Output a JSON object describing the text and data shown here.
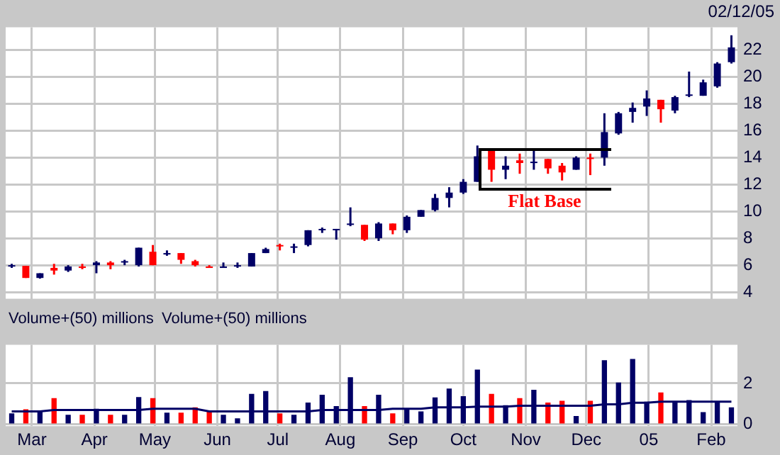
{
  "chart_data": [
    {
      "type": "candlestick",
      "annotations": [
        "02/12/05",
        "Flat Base"
      ],
      "x": [
        "2004-02-20",
        "2004-02-27",
        "2004-03-05",
        "2004-03-12",
        "2004-03-19",
        "2004-03-26",
        "2004-04-02",
        "2004-04-09",
        "2004-04-16",
        "2004-04-23",
        "2004-04-30",
        "2004-05-07",
        "2004-05-14",
        "2004-05-21",
        "2004-05-28",
        "2004-06-04",
        "2004-06-11",
        "2004-06-18",
        "2004-06-25",
        "2004-07-02",
        "2004-07-09",
        "2004-07-16",
        "2004-07-23",
        "2004-07-30",
        "2004-08-06",
        "2004-08-13",
        "2004-08-20",
        "2004-08-27",
        "2004-09-03",
        "2004-09-10",
        "2004-09-17",
        "2004-09-24",
        "2004-10-01",
        "2004-10-08",
        "2004-10-15",
        "2004-10-22",
        "2004-10-29",
        "2004-11-05",
        "2004-11-12",
        "2004-11-19",
        "2004-11-26",
        "2004-12-03",
        "2004-12-10",
        "2004-12-17",
        "2004-12-24",
        "2004-12-31",
        "2005-01-07",
        "2005-01-14",
        "2005-01-21",
        "2005-01-28",
        "2005-02-04",
        "2005-02-11"
      ],
      "ohlc": [
        [
          5.9,
          6.1,
          5.8,
          6.0
        ],
        [
          5.95,
          5.95,
          5.05,
          5.05
        ],
        [
          5.05,
          5.4,
          5.0,
          5.4
        ],
        [
          5.8,
          6.1,
          5.3,
          5.6
        ],
        [
          5.6,
          6.0,
          5.5,
          5.9
        ],
        [
          5.9,
          6.1,
          5.7,
          5.9
        ],
        [
          6.0,
          6.3,
          5.4,
          6.2
        ],
        [
          6.2,
          6.3,
          5.7,
          6.0
        ],
        [
          6.2,
          6.4,
          6.0,
          6.3
        ],
        [
          6.0,
          7.3,
          5.9,
          7.3
        ],
        [
          7.0,
          7.5,
          6.0,
          6.0
        ],
        [
          6.9,
          7.1,
          6.7,
          6.9
        ],
        [
          6.9,
          6.9,
          6.1,
          6.4
        ],
        [
          6.3,
          6.4,
          5.9,
          6.0
        ],
        [
          5.9,
          6.0,
          5.8,
          5.9
        ],
        [
          5.9,
          6.2,
          5.8,
          5.9
        ],
        [
          6.0,
          6.2,
          5.8,
          6.0
        ],
        [
          5.9,
          6.9,
          5.9,
          6.9
        ],
        [
          6.9,
          7.3,
          6.9,
          7.2
        ],
        [
          7.5,
          7.6,
          7.1,
          7.4
        ],
        [
          7.3,
          7.6,
          6.9,
          7.4
        ],
        [
          7.5,
          8.6,
          7.4,
          8.6
        ],
        [
          8.6,
          8.8,
          8.4,
          8.7
        ],
        [
          8.6,
          8.7,
          7.9,
          8.7
        ],
        [
          9.1,
          10.3,
          8.9,
          9.0
        ],
        [
          9.0,
          9.0,
          7.8,
          7.9
        ],
        [
          8.0,
          9.2,
          7.8,
          9.1
        ],
        [
          9.1,
          9.1,
          8.3,
          8.6
        ],
        [
          8.6,
          9.7,
          8.4,
          9.6
        ],
        [
          9.6,
          10.1,
          9.6,
          10.1
        ],
        [
          10.1,
          11.3,
          10.0,
          11.0
        ],
        [
          11.0,
          11.8,
          10.3,
          11.4
        ],
        [
          11.4,
          12.4,
          11.3,
          12.2
        ],
        [
          12.2,
          14.9,
          12.2,
          14.1
        ],
        [
          14.5,
          14.6,
          12.2,
          13.1
        ],
        [
          13.1,
          14.1,
          12.4,
          13.4
        ],
        [
          13.8,
          14.3,
          12.8,
          13.6
        ],
        [
          13.6,
          14.5,
          13.1,
          13.7
        ],
        [
          13.9,
          13.9,
          12.8,
          13.2
        ],
        [
          13.4,
          13.6,
          12.3,
          12.9
        ],
        [
          13.1,
          14.1,
          13.1,
          14.0
        ],
        [
          13.9,
          14.3,
          12.7,
          14.0
        ],
        [
          14.0,
          17.3,
          13.4,
          15.9
        ],
        [
          15.8,
          17.4,
          15.7,
          17.3
        ],
        [
          17.4,
          18.1,
          16.6,
          17.7
        ],
        [
          17.8,
          19.0,
          17.1,
          18.4
        ],
        [
          18.3,
          18.3,
          16.6,
          17.6
        ],
        [
          17.5,
          18.6,
          17.3,
          18.5
        ],
        [
          18.7,
          20.4,
          18.5,
          18.6
        ],
        [
          18.6,
          19.8,
          18.6,
          19.6
        ],
        [
          19.3,
          21.1,
          19.2,
          21.0
        ],
        [
          21.1,
          23.1,
          21.0,
          22.2
        ]
      ],
      "colors": [
        "#000066",
        "#ff0000",
        "#000066",
        "#ff0000",
        "#000066",
        "#ff0000",
        "#000066",
        "#ff0000",
        "#000066",
        "#000066",
        "#ff0000",
        "#000066",
        "#ff0000",
        "#ff0000",
        "#ff0000",
        "#000066",
        "#000066",
        "#000066",
        "#000066",
        "#ff0000",
        "#000066",
        "#000066",
        "#000066",
        "#000066",
        "#000066",
        "#ff0000",
        "#000066",
        "#ff0000",
        "#000066",
        "#000066",
        "#000066",
        "#000066",
        "#000066",
        "#000066",
        "#ff0000",
        "#000066",
        "#ff0000",
        "#000066",
        "#ff0000",
        "#ff0000",
        "#000066",
        "#ff0000",
        "#000066",
        "#000066",
        "#000066",
        "#000066",
        "#ff0000",
        "#000066",
        "#000066",
        "#000066",
        "#000066",
        "#000066"
      ],
      "xlim": [
        "2004-02-17",
        "2005-02-14"
      ],
      "xticks": [
        {
          "value": "2004-03-01",
          "label": null
        },
        {
          "value": "2004-04-01",
          "label": null
        },
        {
          "value": "2004-05-01",
          "label": null
        },
        {
          "value": "2004-06-01",
          "label": null
        },
        {
          "value": "2004-07-01",
          "label": null
        },
        {
          "value": "2004-08-01",
          "label": null
        },
        {
          "value": "2004-09-01",
          "label": null
        },
        {
          "value": "2004-10-01",
          "label": null
        },
        {
          "value": "2004-11-01",
          "label": null
        },
        {
          "value": "2004-12-01",
          "label": null
        },
        {
          "value": "2005-01-01",
          "label": null
        },
        {
          "value": "2005-02-01",
          "label": null
        }
      ],
      "ylim": [
        3.5,
        23.7
      ],
      "yticks": [
        4,
        6,
        8,
        10,
        12,
        14,
        16,
        18,
        20,
        22
      ],
      "grid": true,
      "tick_labels": "y"
    },
    {
      "type": "bar",
      "annotations": [
        "Volume+(50) millions",
        "Volume+(50) millions"
      ],
      "x": [
        "2004-02-20",
        "2004-02-27",
        "2004-03-05",
        "2004-03-12",
        "2004-03-19",
        "2004-03-26",
        "2004-04-02",
        "2004-04-09",
        "2004-04-16",
        "2004-04-23",
        "2004-04-30",
        "2004-05-07",
        "2004-05-14",
        "2004-05-21",
        "2004-05-28",
        "2004-06-04",
        "2004-06-11",
        "2004-06-18",
        "2004-06-25",
        "2004-07-02",
        "2004-07-09",
        "2004-07-16",
        "2004-07-23",
        "2004-07-30",
        "2004-08-06",
        "2004-08-13",
        "2004-08-20",
        "2004-08-27",
        "2004-09-03",
        "2004-09-10",
        "2004-09-17",
        "2004-09-24",
        "2004-10-01",
        "2004-10-08",
        "2004-10-15",
        "2004-10-22",
        "2004-10-29",
        "2004-11-05",
        "2004-11-12",
        "2004-11-19",
        "2004-11-26",
        "2004-12-03",
        "2004-12-10",
        "2004-12-17",
        "2004-12-24",
        "2004-12-31",
        "2005-01-07",
        "2005-01-14",
        "2005-01-21",
        "2005-01-28",
        "2005-02-04",
        "2005-02-11"
      ],
      "series": [
        {
          "type": "bar",
          "colors": [
            "#000066",
            "#ff0000",
            "#000066",
            "#ff0000",
            "#000066",
            "#ff0000",
            "#000066",
            "#ff0000",
            "#000066",
            "#000066",
            "#ff0000",
            "#000066",
            "#ff0000",
            "#ff0000",
            "#ff0000",
            "#000066",
            "#000066",
            "#000066",
            "#000066",
            "#ff0000",
            "#000066",
            "#000066",
            "#000066",
            "#000066",
            "#000066",
            "#ff0000",
            "#000066",
            "#ff0000",
            "#000066",
            "#000066",
            "#000066",
            "#000066",
            "#000066",
            "#000066",
            "#ff0000",
            "#000066",
            "#ff0000",
            "#000066",
            "#ff0000",
            "#ff0000",
            "#000066",
            "#ff0000",
            "#000066",
            "#000066",
            "#000066",
            "#000066",
            "#ff0000",
            "#000066",
            "#000066",
            "#000066",
            "#000066",
            "#000066"
          ],
          "values": [
            0.5,
            0.7,
            0.6,
            1.25,
            0.43,
            0.43,
            0.73,
            0.43,
            0.43,
            1.3,
            1.25,
            0.54,
            0.54,
            0.8,
            0.58,
            0.43,
            0.26,
            1.46,
            1.6,
            0.5,
            0.43,
            1.03,
            1.42,
            0.86,
            2.28,
            0.86,
            1.42,
            0.5,
            0.73,
            0.6,
            1.29,
            1.72,
            1.35,
            2.65,
            1.46,
            0.9,
            1.25,
            1.66,
            1.03,
            1.12,
            0.37,
            1.12,
            3.12,
            2.02,
            3.18,
            1.08,
            1.53,
            1.08,
            1.16,
            0.56,
            1.08,
            0.8
          ]
        },
        {
          "type": "line",
          "color": "#000066",
          "values": [
            0.62,
            0.62,
            0.62,
            0.69,
            0.69,
            0.69,
            0.69,
            0.69,
            0.69,
            0.69,
            0.75,
            0.75,
            0.75,
            0.75,
            0.62,
            0.62,
            0.62,
            0.62,
            0.62,
            0.62,
            0.62,
            0.62,
            0.69,
            0.69,
            0.69,
            0.69,
            0.69,
            0.75,
            0.75,
            0.75,
            0.82,
            0.82,
            0.82,
            0.86,
            0.86,
            0.86,
            0.9,
            0.9,
            0.9,
            0.9,
            0.9,
            0.9,
            0.97,
            0.97,
            1.05,
            1.05,
            1.1,
            1.1,
            1.1,
            1.1,
            1.1,
            1.1
          ]
        }
      ],
      "xlim": [
        "2004-02-17",
        "2005-02-14"
      ],
      "xticks": [
        {
          "value": "2004-03-01",
          "label": "Mar"
        },
        {
          "value": "2004-04-01",
          "label": "Apr"
        },
        {
          "value": "2004-05-01",
          "label": "May"
        },
        {
          "value": "2004-06-01",
          "label": "Jun"
        },
        {
          "value": "2004-07-01",
          "label": "Jul"
        },
        {
          "value": "2004-08-01",
          "label": "Aug"
        },
        {
          "value": "2004-09-01",
          "label": "Sep"
        },
        {
          "value": "2004-10-01",
          "label": "Oct"
        },
        {
          "value": "2004-11-01",
          "label": "Nov"
        },
        {
          "value": "2004-12-01",
          "label": "Dec"
        },
        {
          "value": "2005-01-01",
          "label": "05"
        },
        {
          "value": "2005-02-01",
          "label": "Feb"
        }
      ],
      "ylim": [
        -0.1,
        3.9
      ],
      "yticks": [
        0,
        2
      ],
      "grid": true
    }
  ]
}
